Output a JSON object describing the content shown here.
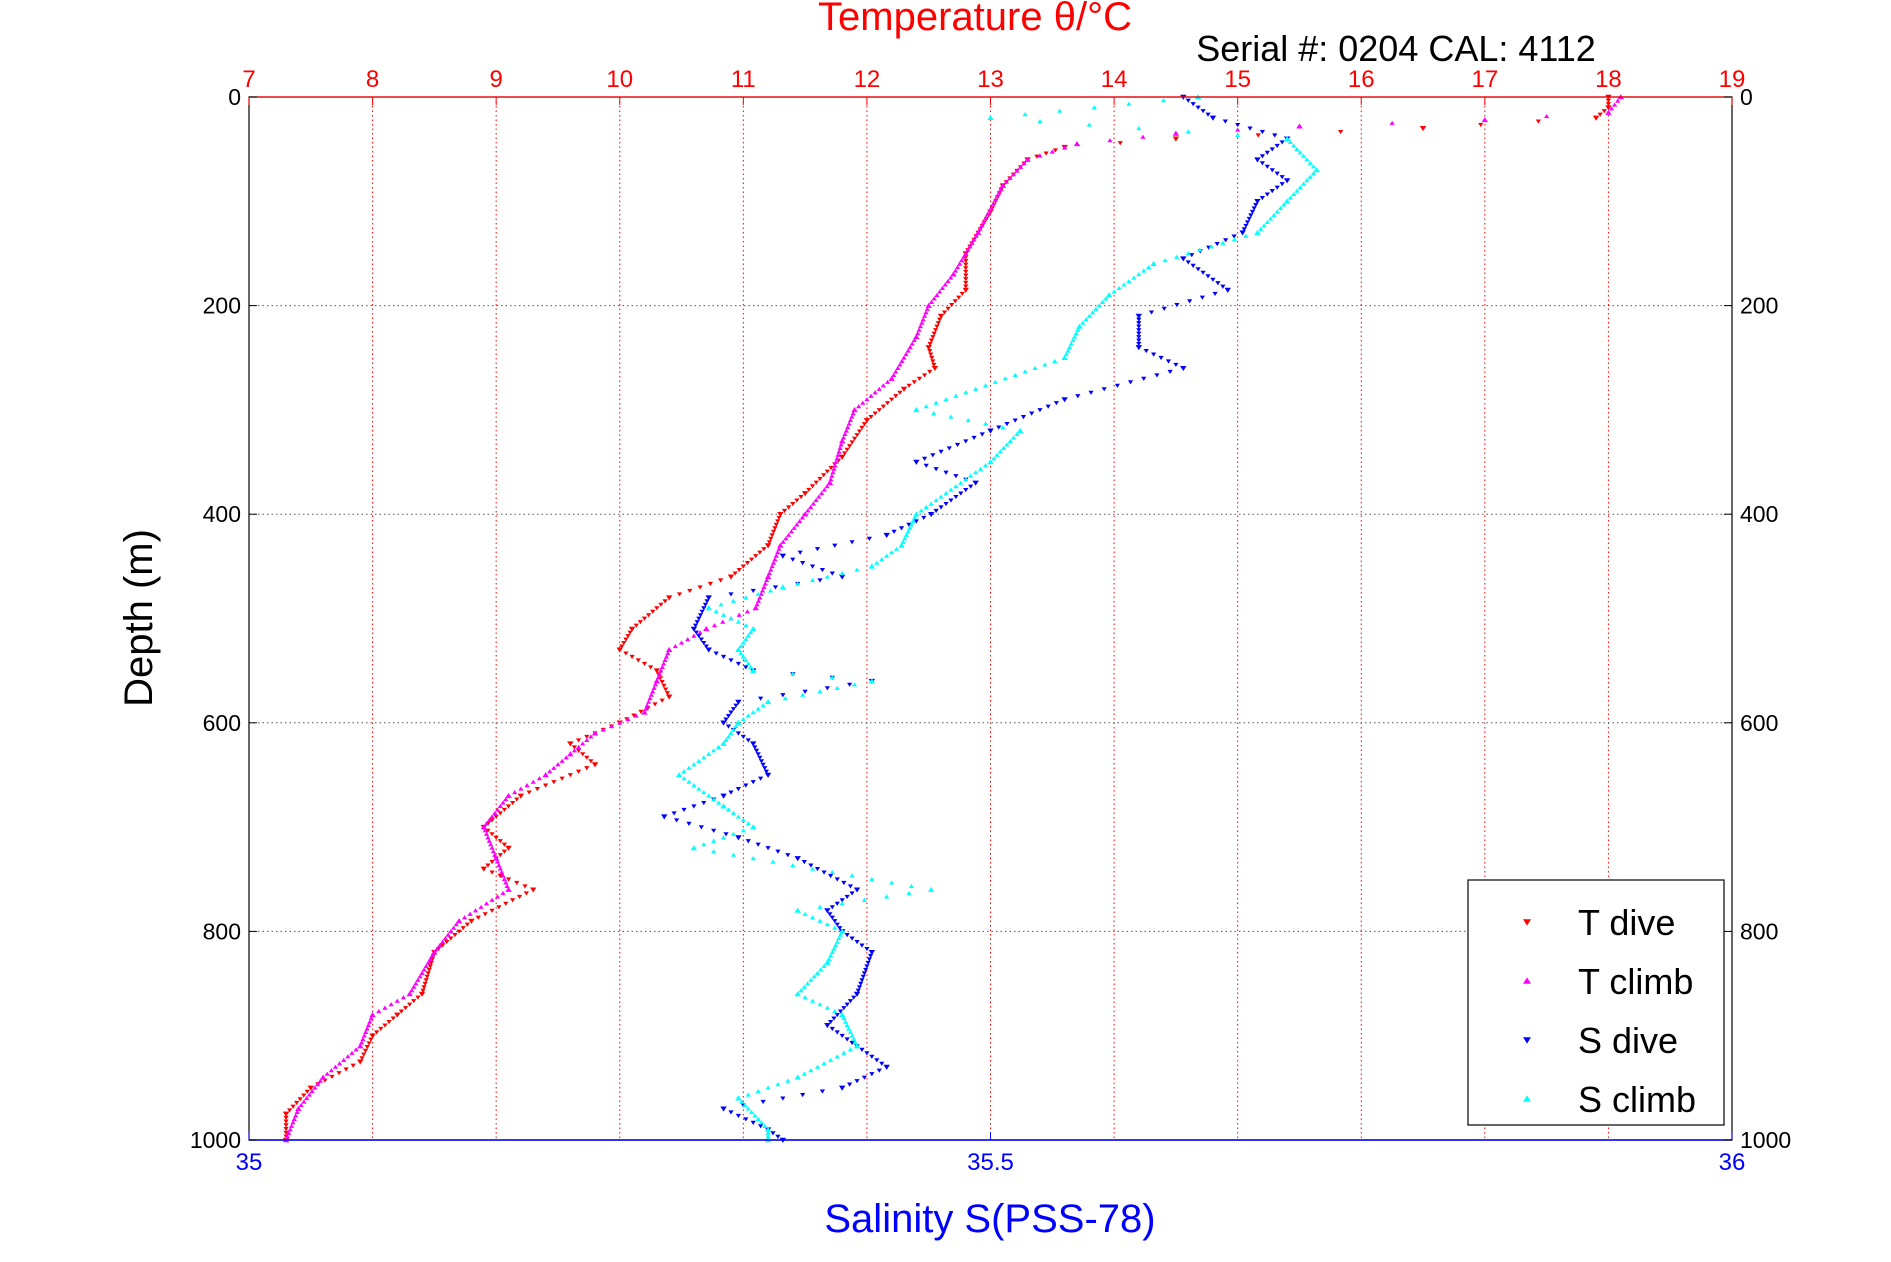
{
  "chart_data": {
    "type": "scatter",
    "title_top": "Temperature θ/°C",
    "subtitle": "Serial #: 0204  CAL: 4112",
    "ylabel": "Depth (m)",
    "xlabel_bottom": "Salinity S(PSS-78)",
    "y_axis": {
      "min": 0,
      "max": 1000,
      "reversed": true,
      "ticks": [
        0,
        200,
        400,
        600,
        800,
        1000
      ]
    },
    "temperature_axis": {
      "min": 7,
      "max": 19,
      "ticks": [
        7,
        8,
        9,
        10,
        11,
        12,
        13,
        14,
        15,
        16,
        17,
        18,
        19
      ]
    },
    "salinity_axis": {
      "min": 35,
      "max": 36,
      "ticks": [
        35,
        35.5,
        36
      ],
      "tick_labels": [
        "35",
        "35.5",
        "36"
      ]
    },
    "colors": {
      "temperature_axis": "#ff0000",
      "salinity_axis": "#0000ff",
      "t_dive": "#ff0000",
      "t_climb": "#ff00ff",
      "s_dive": "#0000ff",
      "s_climb": "#00ffff",
      "grid_temperature": "#ff0000",
      "grid_depth": "#555555"
    },
    "grid": "on",
    "legend_position": "bottom-right",
    "series": [
      {
        "name": "T dive",
        "axis": "temperature",
        "marker": "triangle-down",
        "color": "#ff0000",
        "points": [
          [
            18.0,
            0
          ],
          [
            18.0,
            10
          ],
          [
            17.9,
            20
          ],
          [
            16.5,
            30
          ],
          [
            14.5,
            40
          ],
          [
            13.6,
            48
          ],
          [
            13.3,
            60
          ],
          [
            13.1,
            85
          ],
          [
            13.0,
            110
          ],
          [
            12.8,
            150
          ],
          [
            12.8,
            185
          ],
          [
            12.6,
            210
          ],
          [
            12.5,
            240
          ],
          [
            12.55,
            260
          ],
          [
            12.3,
            280
          ],
          [
            12.0,
            310
          ],
          [
            11.8,
            345
          ],
          [
            11.5,
            380
          ],
          [
            11.3,
            400
          ],
          [
            11.2,
            430
          ],
          [
            10.9,
            460
          ],
          [
            10.4,
            480
          ],
          [
            10.1,
            510
          ],
          [
            10.0,
            530
          ],
          [
            10.3,
            550
          ],
          [
            10.4,
            575
          ],
          [
            10.0,
            600
          ],
          [
            9.6,
            620
          ],
          [
            9.8,
            640
          ],
          [
            9.2,
            670
          ],
          [
            8.9,
            700
          ],
          [
            9.1,
            720
          ],
          [
            8.9,
            740
          ],
          [
            9.3,
            760
          ],
          [
            8.8,
            790
          ],
          [
            8.5,
            820
          ],
          [
            8.4,
            860
          ],
          [
            8.2,
            880
          ],
          [
            8.0,
            900
          ],
          [
            7.9,
            925
          ],
          [
            7.5,
            950
          ],
          [
            7.3,
            975
          ],
          [
            7.3,
            1000
          ]
        ]
      },
      {
        "name": "T climb",
        "axis": "temperature",
        "marker": "triangle-up",
        "color": "#ff00ff",
        "points": [
          [
            18.1,
            0
          ],
          [
            18.0,
            15
          ],
          [
            17.0,
            22
          ],
          [
            15.5,
            28
          ],
          [
            14.5,
            35
          ],
          [
            13.7,
            45
          ],
          [
            13.3,
            60
          ],
          [
            13.1,
            85
          ],
          [
            12.9,
            130
          ],
          [
            12.7,
            170
          ],
          [
            12.5,
            200
          ],
          [
            12.4,
            230
          ],
          [
            12.2,
            270
          ],
          [
            11.9,
            300
          ],
          [
            11.8,
            330
          ],
          [
            11.7,
            370
          ],
          [
            11.5,
            400
          ],
          [
            11.3,
            430
          ],
          [
            11.2,
            460
          ],
          [
            11.1,
            490
          ],
          [
            10.7,
            510
          ],
          [
            10.4,
            530
          ],
          [
            10.3,
            560
          ],
          [
            10.2,
            590
          ],
          [
            9.8,
            610
          ],
          [
            9.6,
            630
          ],
          [
            9.4,
            650
          ],
          [
            9.1,
            670
          ],
          [
            8.9,
            700
          ],
          [
            9.0,
            730
          ],
          [
            9.1,
            760
          ],
          [
            8.7,
            790
          ],
          [
            8.5,
            820
          ],
          [
            8.3,
            860
          ],
          [
            8.0,
            880
          ],
          [
            7.9,
            910
          ],
          [
            7.6,
            940
          ],
          [
            7.4,
            970
          ],
          [
            7.3,
            1000
          ]
        ]
      },
      {
        "name": "S dive",
        "axis": "salinity",
        "marker": "triangle-down",
        "color": "#0000ff",
        "points": [
          [
            35.63,
            0
          ],
          [
            35.65,
            20
          ],
          [
            35.7,
            40
          ],
          [
            35.68,
            60
          ],
          [
            35.7,
            80
          ],
          [
            35.68,
            100
          ],
          [
            35.67,
            130
          ],
          [
            35.63,
            155
          ],
          [
            35.66,
            185
          ],
          [
            35.6,
            210
          ],
          [
            35.6,
            240
          ],
          [
            35.63,
            260
          ],
          [
            35.55,
            290
          ],
          [
            35.5,
            320
          ],
          [
            35.45,
            350
          ],
          [
            35.49,
            370
          ],
          [
            35.46,
            400
          ],
          [
            35.43,
            420
          ],
          [
            35.36,
            440
          ],
          [
            35.4,
            460
          ],
          [
            35.31,
            480
          ],
          [
            35.3,
            510
          ],
          [
            35.31,
            530
          ],
          [
            35.34,
            550
          ],
          [
            35.42,
            560
          ],
          [
            35.33,
            580
          ],
          [
            35.32,
            600
          ],
          [
            35.34,
            620
          ],
          [
            35.35,
            650
          ],
          [
            35.32,
            670
          ],
          [
            35.28,
            690
          ],
          [
            35.33,
            710
          ],
          [
            35.37,
            730
          ],
          [
            35.41,
            760
          ],
          [
            35.39,
            780
          ],
          [
            35.4,
            800
          ],
          [
            35.42,
            820
          ],
          [
            35.41,
            860
          ],
          [
            35.39,
            890
          ],
          [
            35.43,
            930
          ],
          [
            35.4,
            950
          ],
          [
            35.32,
            970
          ],
          [
            35.35,
            990
          ],
          [
            35.36,
            1000
          ]
        ]
      },
      {
        "name": "S climb",
        "axis": "salinity",
        "marker": "triangle-up",
        "color": "#00ffff",
        "points": [
          [
            35.64,
            0
          ],
          [
            35.5,
            20
          ],
          [
            35.7,
            40
          ],
          [
            35.72,
            70
          ],
          [
            35.7,
            100
          ],
          [
            35.68,
            130
          ],
          [
            35.61,
            160
          ],
          [
            35.58,
            190
          ],
          [
            35.56,
            220
          ],
          [
            35.55,
            250
          ],
          [
            35.45,
            300
          ],
          [
            35.52,
            320
          ],
          [
            35.5,
            350
          ],
          [
            35.45,
            400
          ],
          [
            35.44,
            430
          ],
          [
            35.42,
            450
          ],
          [
            35.36,
            470
          ],
          [
            35.31,
            490
          ],
          [
            35.34,
            510
          ],
          [
            35.33,
            530
          ],
          [
            35.34,
            550
          ],
          [
            35.42,
            560
          ],
          [
            35.35,
            580
          ],
          [
            35.33,
            600
          ],
          [
            35.32,
            620
          ],
          [
            35.29,
            650
          ],
          [
            35.32,
            680
          ],
          [
            35.34,
            700
          ],
          [
            35.3,
            720
          ],
          [
            35.46,
            760
          ],
          [
            35.37,
            780
          ],
          [
            35.4,
            800
          ],
          [
            35.39,
            830
          ],
          [
            35.37,
            860
          ],
          [
            35.4,
            880
          ],
          [
            35.41,
            910
          ],
          [
            35.37,
            940
          ],
          [
            35.33,
            960
          ],
          [
            35.35,
            990
          ],
          [
            35.35,
            1000
          ]
        ]
      }
    ]
  }
}
